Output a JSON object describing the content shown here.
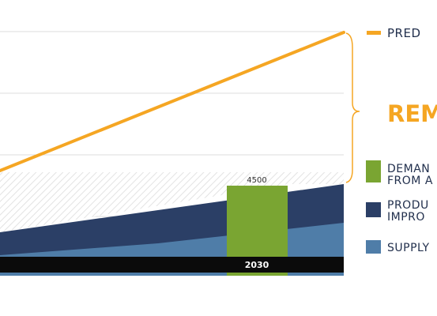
{
  "chart_data": {
    "type": "area",
    "categories": [
      "2030"
    ],
    "bar": {
      "category": "2030",
      "value": 4500,
      "value_label": "4500"
    },
    "legend": {
      "predicted": "PRED",
      "remaining": "REM",
      "demand": [
        "DEMAN",
        "FROM A"
      ],
      "productivity": [
        "PRODU",
        "IMPRO"
      ],
      "supply": "SUPPLY"
    },
    "colors": {
      "predicted_line": "#f5a623",
      "brace": "#f5a623",
      "remaining_text": "#f5a623",
      "demand_bar": "#7aa532",
      "productivity_area": "#2b3f66",
      "supply_area": "#4f7da8",
      "hatch": "#e3e3e3",
      "axis_bar": "#0b0b0b",
      "grid": "#dddddd",
      "text": "#22304d"
    },
    "gridlines": true,
    "legend_position": "right"
  }
}
